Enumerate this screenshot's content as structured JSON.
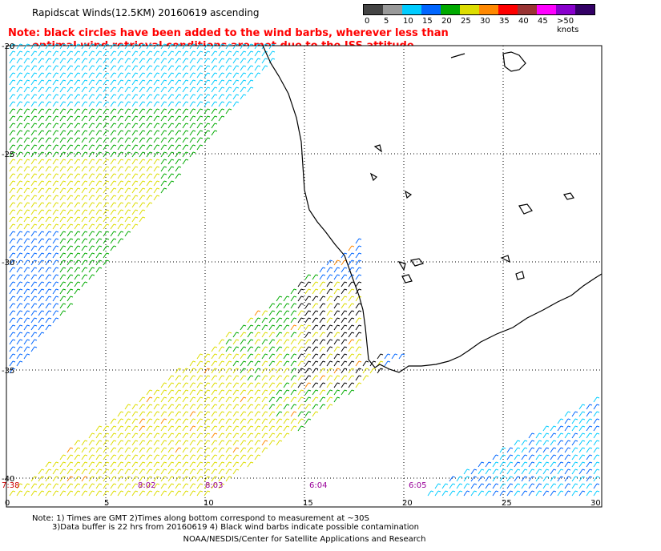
{
  "title": "Rapidscat Winds(12.5KM) 20160619 ascending",
  "note": {
    "line1": "Note: black circles have been added to the wind barbs, wherever less than",
    "line2": "optimal wind retrieval conditions are met due to the ISS attitude changes."
  },
  "scale": {
    "labels": [
      "0",
      "5",
      "10",
      "15",
      "20",
      "25",
      "30",
      "35",
      "40",
      "45",
      ">50 knots"
    ],
    "colors": [
      "#444444",
      "#999999",
      "#00ccff",
      "#0066ff",
      "#00aa00",
      "#dddd00",
      "#ff8800",
      "#ff0000",
      "#993333",
      "#ff00ff",
      "#8800cc",
      "#330066"
    ]
  },
  "map": {
    "lat_labels": [
      "-20",
      "-25",
      "-30",
      "-35",
      "-40"
    ],
    "lon_labels": [
      "0",
      "5",
      "10",
      "15",
      "20",
      "25",
      "30"
    ],
    "time_labels": [
      "7:38",
      "8:02",
      "8:03",
      "6:04",
      "6:05"
    ]
  },
  "footer": {
    "line1": "Note: 1) Times are GMT 2)Times along bottom correspond to measurement at ~30S",
    "line2": "3)Data buffer is 22 hrs from 20160619 4) Black wind barbs indicate possible contamination",
    "line3": "NOAA/NESDIS/Center for Satellite Applications and Research"
  }
}
